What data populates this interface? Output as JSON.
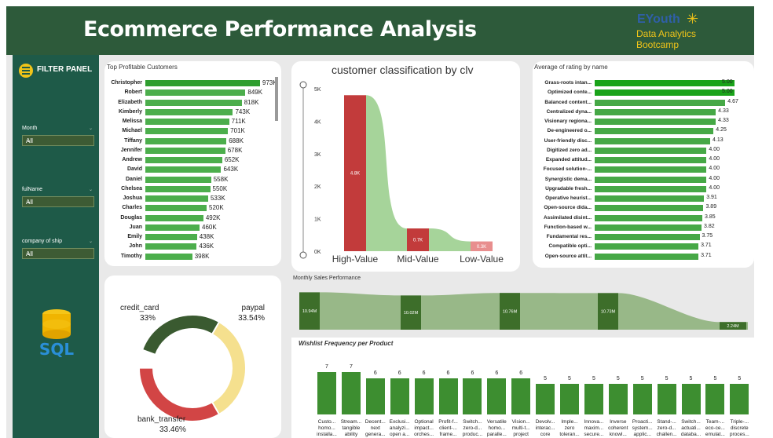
{
  "header": {
    "title": "Ecommerce Performance Analysis"
  },
  "logo": {
    "line1": "EYouth",
    "line2": "Data Analytics",
    "line3": "Bootcamp"
  },
  "sidebar": {
    "heading": "FILTER PANEL",
    "filters": [
      {
        "label": "Month",
        "value": "All"
      },
      {
        "label": "fulName",
        "value": "All"
      },
      {
        "label": "company of ship",
        "value": "All"
      }
    ],
    "sql_label": "SQL"
  },
  "top_customers": {
    "title": "Top Profitable Customers",
    "max": 973,
    "rows": [
      {
        "name": "Christopher",
        "value": 973,
        "label": "973K"
      },
      {
        "name": "Robert",
        "value": 849,
        "label": "849K"
      },
      {
        "name": "Elizabeth",
        "value": 818,
        "label": "818K"
      },
      {
        "name": "Kimberly",
        "value": 743,
        "label": "743K"
      },
      {
        "name": "Melissa",
        "value": 711,
        "label": "711K"
      },
      {
        "name": "Michael",
        "value": 701,
        "label": "701K"
      },
      {
        "name": "Tiffany",
        "value": 688,
        "label": "688K"
      },
      {
        "name": "Jennifer",
        "value": 678,
        "label": "678K"
      },
      {
        "name": "Andrew",
        "value": 652,
        "label": "652K"
      },
      {
        "name": "David",
        "value": 643,
        "label": "643K"
      },
      {
        "name": "Daniel",
        "value": 558,
        "label": "558K"
      },
      {
        "name": "Chelsea",
        "value": 550,
        "label": "550K"
      },
      {
        "name": "Joshua",
        "value": 533,
        "label": "533K"
      },
      {
        "name": "Charles",
        "value": 520,
        "label": "520K"
      },
      {
        "name": "Douglas",
        "value": 492,
        "label": "492K"
      },
      {
        "name": "Juan",
        "value": 460,
        "label": "460K"
      },
      {
        "name": "Emily",
        "value": 438,
        "label": "438K"
      },
      {
        "name": "John",
        "value": 436,
        "label": "436K"
      },
      {
        "name": "Timothy",
        "value": 398,
        "label": "398K"
      }
    ]
  },
  "clv": {
    "title": "customer classification by clv",
    "yticks": [
      "0K",
      "1K",
      "2K",
      "3K",
      "4K",
      "5K"
    ],
    "ymax": 5000,
    "bars": [
      {
        "category": "High-Value",
        "value": 4800,
        "label": "4.8K",
        "color": "#c23b3b"
      },
      {
        "category": "Mid-Value",
        "value": 700,
        "label": "0.7K",
        "color": "#c23b3b"
      },
      {
        "category": "Low-Value",
        "value": 300,
        "label": "0.3K",
        "color": "#e88e8e"
      }
    ],
    "ribbon_color": "#a6d49a"
  },
  "ratings": {
    "title": "Average of rating by name",
    "max": 5.0,
    "rows": [
      {
        "name": "Grass-roots intan...",
        "value": 5.0,
        "label": "5.00"
      },
      {
        "name": "Optimized conte...",
        "value": 5.0,
        "label": "5.00"
      },
      {
        "name": "Balanced content...",
        "value": 4.67,
        "label": "4.67"
      },
      {
        "name": "Centralized dyna...",
        "value": 4.33,
        "label": "4.33"
      },
      {
        "name": "Visionary regiona...",
        "value": 4.33,
        "label": "4.33"
      },
      {
        "name": "De-engineered o...",
        "value": 4.25,
        "label": "4.25"
      },
      {
        "name": "User-friendly disc...",
        "value": 4.13,
        "label": "4.13"
      },
      {
        "name": "Digitized zero ad...",
        "value": 4.0,
        "label": "4.00"
      },
      {
        "name": "Expanded attitud...",
        "value": 4.0,
        "label": "4.00"
      },
      {
        "name": "Focused solution-...",
        "value": 4.0,
        "label": "4.00"
      },
      {
        "name": "Synergistic dema...",
        "value": 4.0,
        "label": "4.00"
      },
      {
        "name": "Upgradable fresh...",
        "value": 4.0,
        "label": "4.00"
      },
      {
        "name": "Operative heurist...",
        "value": 3.91,
        "label": "3.91"
      },
      {
        "name": "Open-source dida...",
        "value": 3.89,
        "label": "3.89"
      },
      {
        "name": "Assimilated disint...",
        "value": 3.85,
        "label": "3.85"
      },
      {
        "name": "Function-based w...",
        "value": 3.82,
        "label": "3.82"
      },
      {
        "name": "Fundamental res...",
        "value": 3.75,
        "label": "3.75"
      },
      {
        "name": "Compatible opti...",
        "value": 3.71,
        "label": "3.71"
      },
      {
        "name": "Open-source attit...",
        "value": 3.71,
        "label": "3.71"
      }
    ]
  },
  "payment": {
    "slices": [
      {
        "name": "credit_card",
        "value": 33.0,
        "label": "33%",
        "color": "#3a5a30"
      },
      {
        "name": "paypal",
        "value": 33.54,
        "label": "33.54%",
        "color": "#f5e08e"
      },
      {
        "name": "bank_transfer",
        "value": 33.46,
        "label": "33.46%",
        "color": "#d24545"
      }
    ]
  },
  "monthly": {
    "title": "Monthly Sales Performance",
    "labels": [
      "10.94M",
      "10.02M",
      "10.76M",
      "10.73M",
      "2.24M"
    ],
    "values": [
      10.94,
      10.02,
      10.76,
      10.73,
      2.24
    ]
  },
  "wishlist": {
    "title": "Wishlist Frequency per Product",
    "max": 7,
    "items": [
      {
        "value": 7,
        "l1": "Custo...",
        "l2": "homo...",
        "l3": "installa..."
      },
      {
        "value": 7,
        "l1": "Stream...",
        "l2": "tangible",
        "l3": "ability"
      },
      {
        "value": 6,
        "l1": "Decent...",
        "l2": "next",
        "l3": "genera..."
      },
      {
        "value": 6,
        "l1": "Exclusi...",
        "l2": "analyzi...",
        "l3": "open a..."
      },
      {
        "value": 6,
        "l1": "Optional",
        "l2": "impact...",
        "l3": "orches..."
      },
      {
        "value": 6,
        "l1": "Profit-f...",
        "l2": "client-...",
        "l3": "frame..."
      },
      {
        "value": 6,
        "l1": "Switch...",
        "l2": "zero-d...",
        "l3": "produc..."
      },
      {
        "value": 6,
        "l1": "Versatile",
        "l2": "homo...",
        "l3": "paralle..."
      },
      {
        "value": 6,
        "l1": "Vision...",
        "l2": "multi-t...",
        "l3": "project"
      },
      {
        "value": 5,
        "l1": "Devolv...",
        "l2": "interac...",
        "l3": "core"
      },
      {
        "value": 5,
        "l1": "Imple...",
        "l2": "zero",
        "l3": "toleran..."
      },
      {
        "value": 5,
        "l1": "Innova...",
        "l2": "maxim...",
        "l3": "secure..."
      },
      {
        "value": 5,
        "l1": "Inverse",
        "l2": "coherent",
        "l3": "knowl..."
      },
      {
        "value": 5,
        "l1": "Proacti...",
        "l2": "system...",
        "l3": "applic..."
      },
      {
        "value": 5,
        "l1": "Stand-...",
        "l2": "zero-d...",
        "l3": "challen..."
      },
      {
        "value": 5,
        "l1": "Switch...",
        "l2": "actuati...",
        "l3": "databa..."
      },
      {
        "value": 5,
        "l1": "Team-...",
        "l2": "eco-ce...",
        "l3": "emulat..."
      },
      {
        "value": 5,
        "l1": "Triple-...",
        "l2": "discrete",
        "l3": "proces..."
      }
    ]
  },
  "chart_data": [
    {
      "type": "bar",
      "title": "Top Profitable Customers",
      "categories": [
        "Christopher",
        "Robert",
        "Elizabeth",
        "Kimberly",
        "Melissa",
        "Michael",
        "Tiffany",
        "Jennifer",
        "Andrew",
        "David",
        "Daniel",
        "Chelsea",
        "Joshua",
        "Charles",
        "Douglas",
        "Juan",
        "Emily",
        "John",
        "Timothy"
      ],
      "values": [
        973,
        849,
        818,
        743,
        711,
        701,
        688,
        678,
        652,
        643,
        558,
        550,
        533,
        520,
        492,
        460,
        438,
        436,
        398
      ]
    },
    {
      "type": "bar",
      "title": "customer classification by clv",
      "categories": [
        "High-Value",
        "Mid-Value",
        "Low-Value"
      ],
      "values": [
        4800,
        700,
        300
      ],
      "ylim": [
        0,
        5000
      ]
    },
    {
      "type": "bar",
      "title": "Average of rating by name",
      "categories": [
        "Grass-roots intan...",
        "Optimized conte...",
        "Balanced content...",
        "Centralized dyna...",
        "Visionary regiona...",
        "De-engineered o...",
        "User-friendly disc...",
        "Digitized zero ad...",
        "Expanded attitud...",
        "Focused solution-...",
        "Synergistic dema...",
        "Upgradable fresh...",
        "Operative heurist...",
        "Open-source dida...",
        "Assimilated disint...",
        "Function-based w...",
        "Fundamental res...",
        "Compatible opti...",
        "Open-source attit..."
      ],
      "values": [
        5.0,
        5.0,
        4.67,
        4.33,
        4.33,
        4.25,
        4.13,
        4.0,
        4.0,
        4.0,
        4.0,
        4.0,
        3.91,
        3.89,
        3.85,
        3.82,
        3.75,
        3.71,
        3.71
      ]
    },
    {
      "type": "pie",
      "categories": [
        "credit_card",
        "paypal",
        "bank_transfer"
      ],
      "values": [
        33.0,
        33.54,
        33.46
      ]
    },
    {
      "type": "area",
      "title": "Monthly Sales Performance",
      "values": [
        10.94,
        10.02,
        10.76,
        10.73,
        2.24
      ]
    },
    {
      "type": "bar",
      "title": "Wishlist Frequency per Product",
      "values": [
        7,
        7,
        6,
        6,
        6,
        6,
        6,
        6,
        6,
        5,
        5,
        5,
        5,
        5,
        5,
        5,
        5,
        5
      ]
    }
  ]
}
